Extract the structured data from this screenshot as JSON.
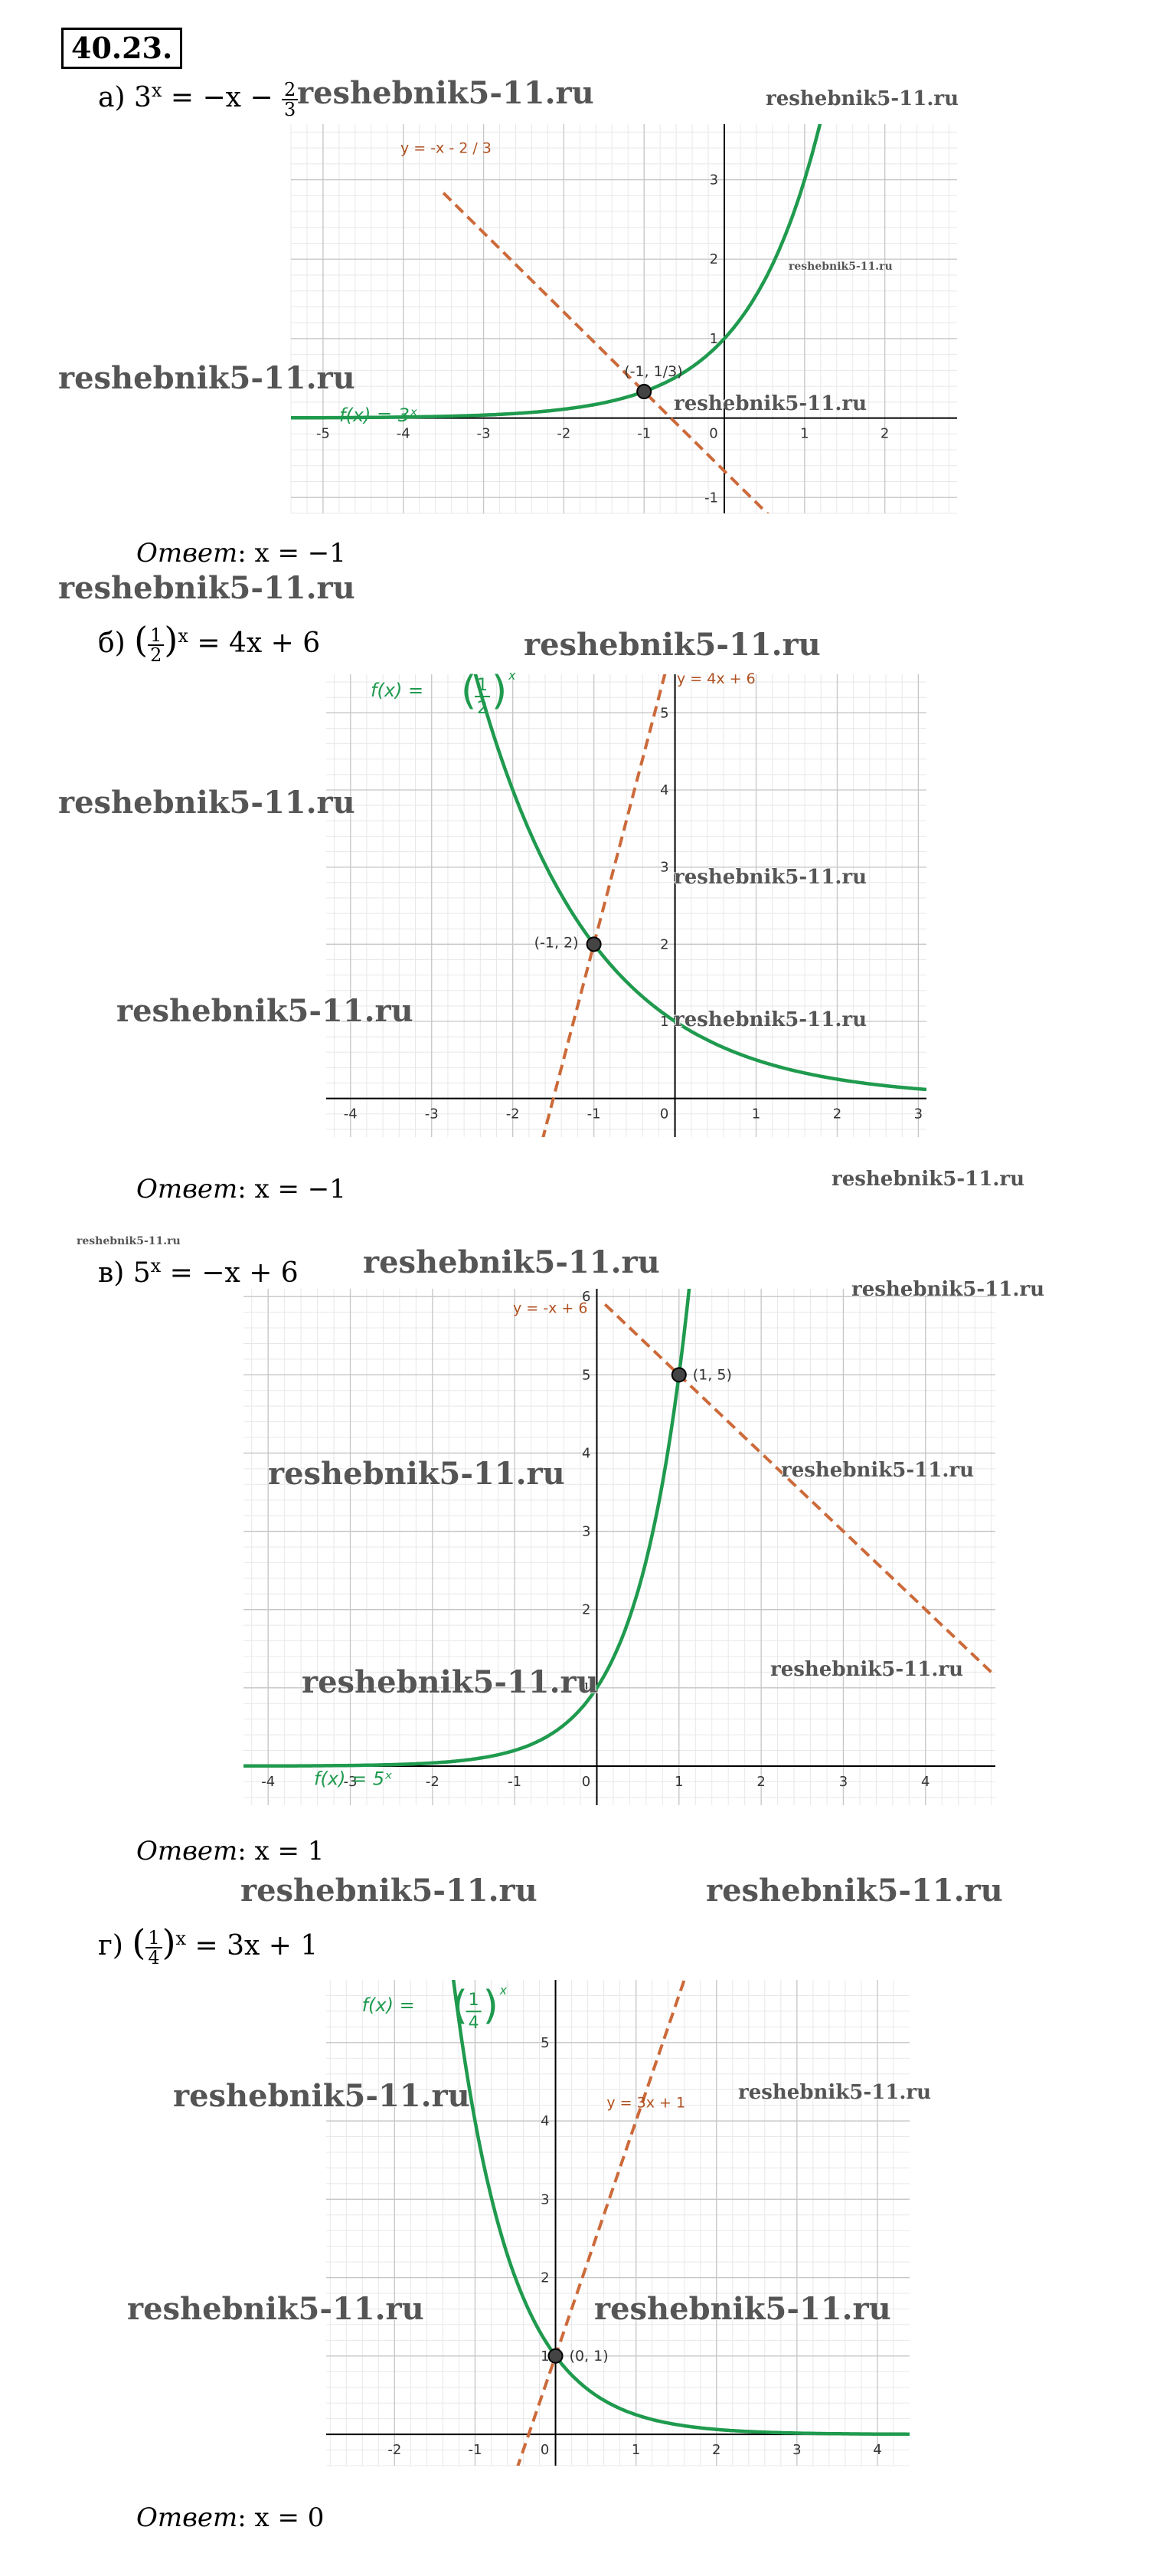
{
  "problem_number": "40.23.",
  "watermark": "reshebnik5-11.ru",
  "parts": [
    {
      "label": "а)",
      "equation": {
        "base": "3",
        "exp": "x",
        "rhs": "= −x −",
        "frac_num": "2",
        "frac_den": "3"
      },
      "answer_word": "Ответ",
      "answer_rest": ": x = −1",
      "graph": {
        "xlim": [
          -5.4,
          2.9
        ],
        "ylim": [
          -1.2,
          3.7
        ],
        "x_ticks": [
          "-5",
          "-4",
          "-3",
          "-2",
          "-1",
          "0",
          "1",
          "2"
        ],
        "y_ticks": [
          "-1",
          "1",
          "2",
          "3"
        ],
        "exp_label": "f(x)  =  3ˣ",
        "line_label": "y = -x - 2 / 3",
        "point_label": "(-1,  1/3)",
        "point": [
          -1,
          0.3333
        ]
      }
    },
    {
      "label": "б)",
      "equation": {
        "lhs_frac_num": "1",
        "lhs_frac_den": "2",
        "exp": "x",
        "rhs": "= 4x + 6"
      },
      "answer_word": "Ответ",
      "answer_rest": ": x = −1",
      "graph": {
        "xlim": [
          -4.3,
          3.1
        ],
        "ylim": [
          -0.5,
          5.5
        ],
        "x_ticks": [
          "-4",
          "-3",
          "-2",
          "-1",
          "0",
          "1",
          "2",
          "3"
        ],
        "y_ticks": [
          "1",
          "2",
          "3",
          "4",
          "5"
        ],
        "exp_label_prefix": "f(x)  =",
        "exp_frac_num": "1",
        "exp_frac_den": "2",
        "line_label": "y = 4x + 6",
        "point_label": "(-1, 2)",
        "point": [
          -1,
          2
        ]
      }
    },
    {
      "label": "в)",
      "equation": {
        "base": "5",
        "exp": "x",
        "rhs": "= −x + 6"
      },
      "answer_word": "Ответ",
      "answer_rest": ": x = 1",
      "graph": {
        "xlim": [
          -4.3,
          4.85
        ],
        "ylim": [
          -0.5,
          6.1
        ],
        "x_ticks": [
          "-4",
          "-3",
          "-2",
          "-1",
          "0",
          "1",
          "2",
          "3",
          "4"
        ],
        "y_ticks": [
          "1",
          "2",
          "3",
          "4",
          "5",
          "6"
        ],
        "exp_label": "f(x)  =  5ˣ",
        "line_label": "y = -x + 6",
        "point_label": "(1, 5)",
        "point": [
          1,
          5
        ]
      }
    },
    {
      "label": "г)",
      "equation": {
        "lhs_frac_num": "1",
        "lhs_frac_den": "4",
        "exp": "x",
        "rhs": "= 3x + 1"
      },
      "answer_word": "Ответ",
      "answer_rest": ": x = 0",
      "graph": {
        "xlim": [
          -2.85,
          4.4
        ],
        "ylim": [
          -0.4,
          5.8
        ],
        "x_ticks": [
          "-2",
          "-1",
          "0",
          "1",
          "2",
          "3",
          "4"
        ],
        "y_ticks": [
          "1",
          "2",
          "3",
          "4",
          "5"
        ],
        "exp_label_prefix": "f(x)  =",
        "exp_frac_num": "1",
        "exp_frac_den": "4",
        "line_label": "y = 3x + 1",
        "point_label": "(0, 1)",
        "point": [
          0,
          1
        ]
      }
    }
  ],
  "colors": {
    "curve": "#1f9a4e",
    "line": "#cc6a3a",
    "label_line": "#b05020",
    "grid_major": "#c6c6c6",
    "grid_minor": "#e8e8e8"
  }
}
